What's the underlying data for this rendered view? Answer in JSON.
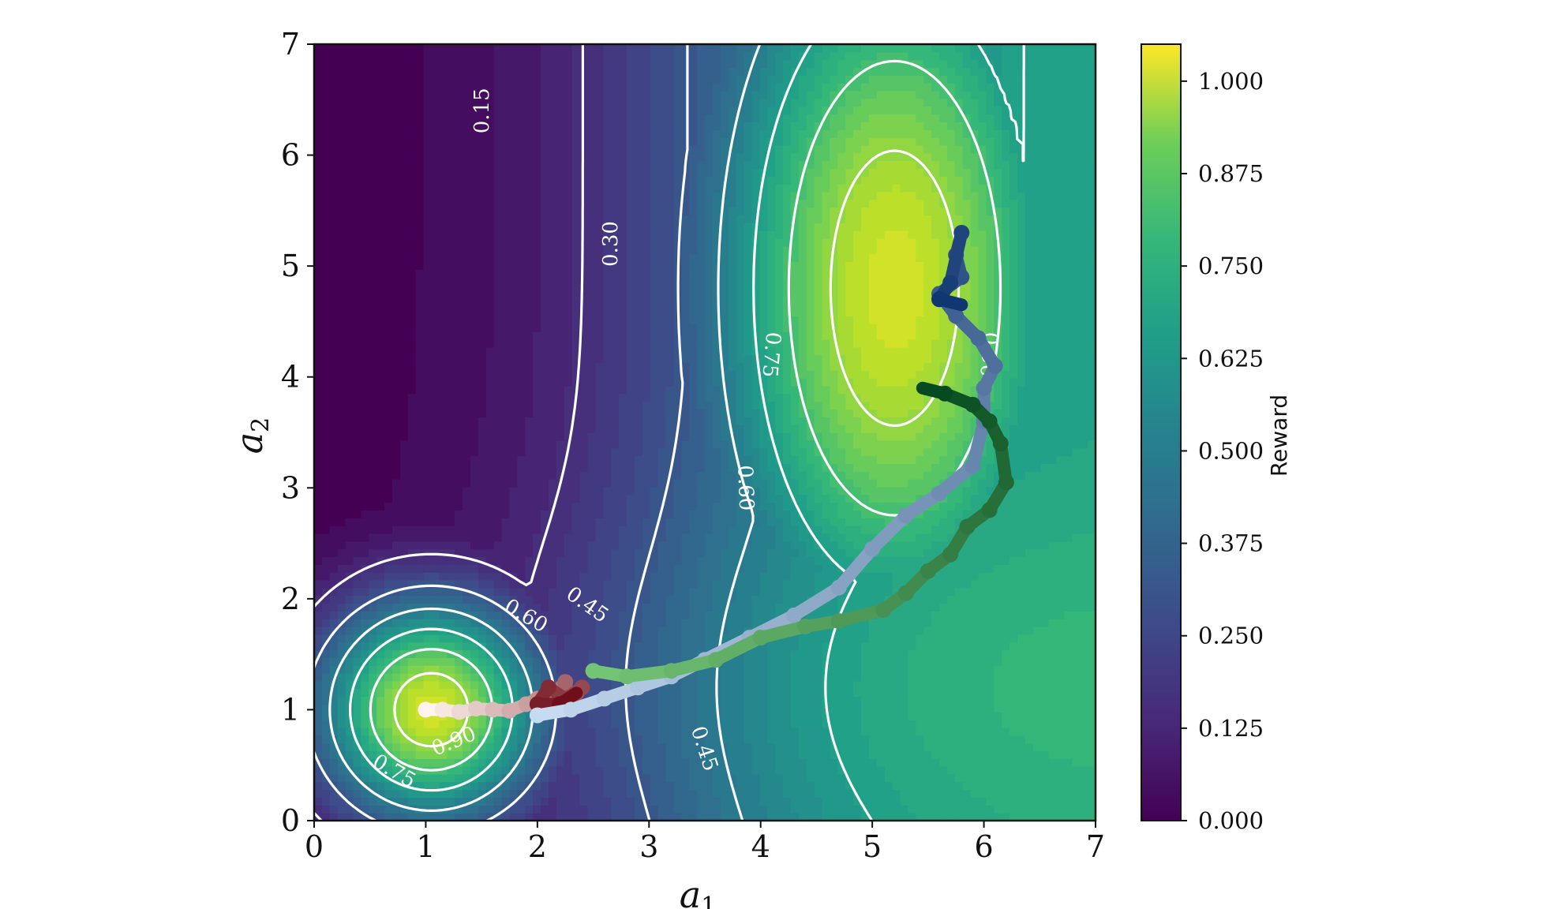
{
  "chart_data": {
    "type": "heatmap",
    "subtype": "filled-contour with overlaid trajectories",
    "xlabel": "a",
    "xlabel_subscript": "1",
    "ylabel": "a",
    "ylabel_subscript": "2",
    "xlim": [
      0,
      7
    ],
    "ylim": [
      0,
      7
    ],
    "x_ticks": [
      "0",
      "1",
      "2",
      "3",
      "4",
      "5",
      "6",
      "7"
    ],
    "y_ticks": [
      "0",
      "1",
      "2",
      "3",
      "4",
      "5",
      "6",
      "7"
    ],
    "colormap": "viridis",
    "colorbar": {
      "label": "Reward",
      "range": [
        0.0,
        1.05
      ],
      "ticks": [
        0.0,
        0.125,
        0.25,
        0.375,
        0.5,
        0.625,
        0.75,
        0.875,
        1.0
      ],
      "tick_labels": [
        "0.000",
        "0.125",
        "0.250",
        "0.375",
        "0.500",
        "0.625",
        "0.750",
        "0.875",
        "1.000"
      ]
    },
    "contour_levels": [
      0.15,
      0.3,
      0.45,
      0.6,
      0.75,
      0.9
    ],
    "contour_labels": [
      {
        "text": "0.15",
        "x": 1.5,
        "y": 6.4,
        "rotate": -90
      },
      {
        "text": "0.30",
        "x": 2.65,
        "y": 5.2,
        "rotate": -90
      },
      {
        "text": "0.45",
        "x": 2.45,
        "y": 1.95,
        "rotate": 35
      },
      {
        "text": "0.60",
        "x": 1.9,
        "y": 1.85,
        "rotate": 30
      },
      {
        "text": "0.75",
        "x": 0.72,
        "y": 0.45,
        "rotate": 30
      },
      {
        "text": "0.90",
        "x": 1.25,
        "y": 0.72,
        "rotate": -22
      },
      {
        "text": "0.45",
        "x": 3.5,
        "y": 0.65,
        "rotate": 72
      },
      {
        "text": "0.60",
        "x": 3.87,
        "y": 3.0,
        "rotate": 88
      },
      {
        "text": "0.75",
        "x": 4.1,
        "y": 4.2,
        "rotate": 95
      },
      {
        "text": "0.90",
        "x": 6.05,
        "y": 4.2,
        "rotate": 95
      }
    ],
    "reward_peaks": [
      {
        "x": 1.05,
        "y": 1.0,
        "value": 1.0
      },
      {
        "x": 5.2,
        "y": 4.8,
        "value": 1.0
      }
    ],
    "trajectories": [
      {
        "color_start": "#fff5ee",
        "color_end": "#67000d",
        "stroke_width": 10,
        "points": [
          [
            1.0,
            1.0
          ],
          [
            1.15,
            1.0
          ],
          [
            1.3,
            0.98
          ],
          [
            1.45,
            1.01
          ],
          [
            1.6,
            1.0
          ],
          [
            1.75,
            0.99
          ],
          [
            1.9,
            1.05
          ],
          [
            2.0,
            1.1
          ],
          [
            2.05,
            1.0
          ],
          [
            2.15,
            1.15
          ],
          [
            2.25,
            1.25
          ],
          [
            2.3,
            1.05
          ],
          [
            2.4,
            1.2
          ],
          [
            2.25,
            1.1
          ],
          [
            2.1,
            1.2
          ],
          [
            2.0,
            1.05
          ],
          [
            2.2,
            1.05
          ],
          [
            2.35,
            1.15
          ]
        ]
      },
      {
        "color_start": "#c6dbef",
        "color_end": "#08306b",
        "stroke_width": 10,
        "points": [
          [
            2.0,
            0.95
          ],
          [
            2.3,
            1.0
          ],
          [
            2.6,
            1.1
          ],
          [
            2.9,
            1.2
          ],
          [
            3.2,
            1.3
          ],
          [
            3.5,
            1.45
          ],
          [
            3.9,
            1.65
          ],
          [
            4.3,
            1.85
          ],
          [
            4.7,
            2.1
          ],
          [
            5.0,
            2.45
          ],
          [
            5.3,
            2.75
          ],
          [
            5.6,
            2.95
          ],
          [
            5.9,
            3.2
          ],
          [
            6.0,
            3.6
          ],
          [
            6.0,
            3.9
          ],
          [
            6.1,
            4.1
          ],
          [
            5.95,
            4.35
          ],
          [
            5.75,
            4.55
          ],
          [
            5.6,
            4.75
          ],
          [
            5.8,
            4.9
          ],
          [
            5.75,
            5.1
          ],
          [
            5.8,
            5.3
          ],
          [
            5.7,
            4.85
          ],
          [
            5.6,
            4.7
          ],
          [
            5.8,
            4.65
          ]
        ]
      },
      {
        "color_start": "#74c476",
        "color_end": "#00441b",
        "stroke_width": 10,
        "points": [
          [
            2.5,
            1.35
          ],
          [
            2.8,
            1.3
          ],
          [
            3.2,
            1.35
          ],
          [
            3.6,
            1.45
          ],
          [
            4.0,
            1.65
          ],
          [
            4.4,
            1.75
          ],
          [
            4.7,
            1.8
          ],
          [
            5.1,
            1.9
          ],
          [
            5.3,
            2.05
          ],
          [
            5.5,
            2.25
          ],
          [
            5.7,
            2.4
          ],
          [
            5.85,
            2.65
          ],
          [
            6.05,
            2.8
          ],
          [
            6.2,
            3.05
          ],
          [
            6.15,
            3.4
          ],
          [
            6.05,
            3.6
          ],
          [
            5.9,
            3.75
          ],
          [
            5.65,
            3.85
          ],
          [
            5.45,
            3.9
          ]
        ]
      }
    ]
  }
}
